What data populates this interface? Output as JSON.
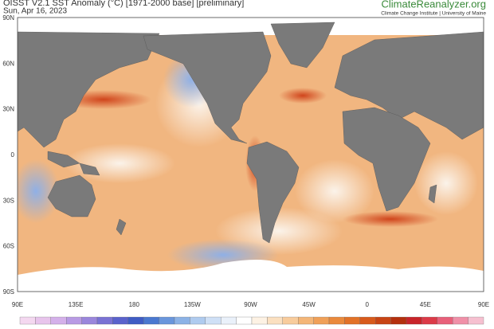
{
  "header": {
    "title": "OISST V2.1 SST Anomaly (°C) [1971-2000 base] [preliminary]",
    "date": "Sun, Apr 16, 2023",
    "brand": "ClimateReanalyzer.org",
    "affiliation": "Climate Change Institute | University of Maine"
  },
  "map": {
    "lat_labels": [
      "90N",
      "60N",
      "30N",
      "0",
      "30S",
      "60S",
      "90S"
    ],
    "lon_labels": [
      "90E",
      "135E",
      "180",
      "135W",
      "90W",
      "45W",
      "0",
      "45E",
      "90E"
    ]
  }
}
